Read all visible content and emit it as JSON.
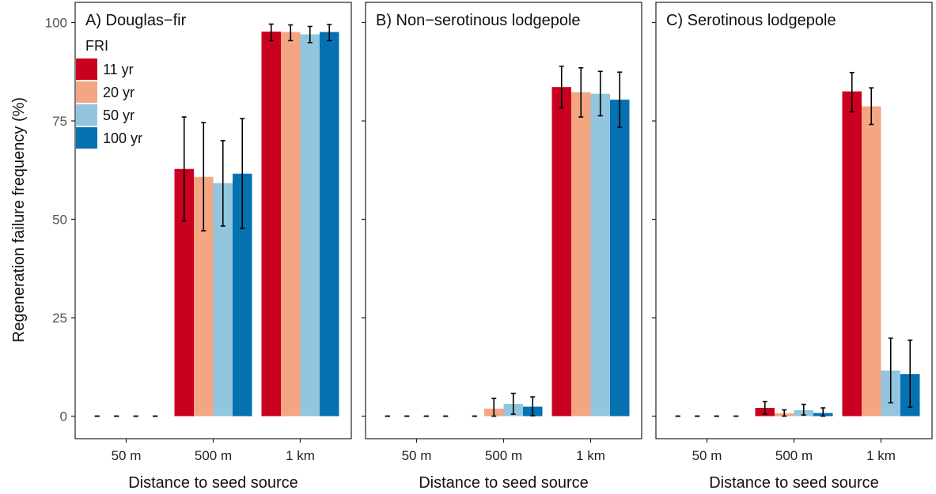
{
  "y_axis_label": "Regeneration failure frequency (%)",
  "legend": {
    "title": "FRI",
    "position": "top-left (inside panel A)",
    "items": [
      {
        "label": "11 yr",
        "color": "#ca0020"
      },
      {
        "label": "20 yr",
        "color": "#f4a582"
      },
      {
        "label": "50 yr",
        "color": "#92c5de"
      },
      {
        "label": "100 yr",
        "color": "#0571b0"
      }
    ]
  },
  "chart_data": [
    {
      "type": "bar",
      "title": "A) Douglas−fir",
      "xlabel": "Distance to seed source",
      "ylabel": "Regeneration failure frequency (%)",
      "categories": [
        "50 m",
        "500 m",
        "1 km"
      ],
      "ylim": [
        0,
        100
      ],
      "yticks": [
        0,
        25,
        50,
        75,
        100
      ],
      "grid": false,
      "series": [
        {
          "name": "11 yr",
          "color": "#ca0020",
          "values": [
            0,
            62.8,
            97.7
          ],
          "err_low": [
            0,
            49.6,
            95.4
          ],
          "err_high": [
            0,
            76.0,
            99.6
          ]
        },
        {
          "name": "20 yr",
          "color": "#f4a582",
          "values": [
            0,
            60.8,
            97.6
          ],
          "err_low": [
            0,
            47.1,
            95.4
          ],
          "err_high": [
            0,
            74.6,
            99.4
          ]
        },
        {
          "name": "50 yr",
          "color": "#92c5de",
          "values": [
            0,
            59.2,
            97.0
          ],
          "err_low": [
            0,
            48.3,
            94.9
          ],
          "err_high": [
            0,
            70.0,
            99.0
          ]
        },
        {
          "name": "100 yr",
          "color": "#0571b0",
          "values": [
            0,
            61.6,
            97.6
          ],
          "err_low": [
            0,
            47.7,
            95.4
          ],
          "err_high": [
            0,
            75.6,
            99.5
          ]
        }
      ]
    },
    {
      "type": "bar",
      "title": "B) Non−serotinous lodgepole",
      "xlabel": "Distance to seed source",
      "ylabel": "Regeneration failure frequency (%)",
      "categories": [
        "50 m",
        "500 m",
        "1 km"
      ],
      "ylim": [
        0,
        100
      ],
      "yticks": [
        0,
        25,
        50,
        75,
        100
      ],
      "grid": false,
      "series": [
        {
          "name": "11 yr",
          "color": "#ca0020",
          "values": [
            0,
            0,
            83.6
          ],
          "err_low": [
            0,
            0,
            78.3
          ],
          "err_high": [
            0,
            0,
            88.9
          ]
        },
        {
          "name": "20 yr",
          "color": "#f4a582",
          "values": [
            0,
            1.9,
            82.3
          ],
          "err_low": [
            0,
            0,
            76.0
          ],
          "err_high": [
            0,
            4.5,
            88.5
          ]
        },
        {
          "name": "50 yr",
          "color": "#92c5de",
          "values": [
            0,
            3.1,
            81.9
          ],
          "err_low": [
            0,
            0.5,
            76.3
          ],
          "err_high": [
            0,
            5.8,
            87.6
          ]
        },
        {
          "name": "100 yr",
          "color": "#0571b0",
          "values": [
            0,
            2.4,
            80.4
          ],
          "err_low": [
            0,
            0.1,
            73.4
          ],
          "err_high": [
            0,
            4.9,
            87.4
          ]
        }
      ]
    },
    {
      "type": "bar",
      "title": "C) Serotinous lodgepole",
      "xlabel": "Distance to seed source",
      "ylabel": "Regeneration failure frequency (%)",
      "categories": [
        "50 m",
        "500 m",
        "1 km"
      ],
      "ylim": [
        0,
        100
      ],
      "yticks": [
        0,
        25,
        50,
        75,
        100
      ],
      "grid": false,
      "series": [
        {
          "name": "11 yr",
          "color": "#ca0020",
          "values": [
            0,
            2.1,
            82.5
          ],
          "err_low": [
            0,
            0.5,
            77.3
          ],
          "err_high": [
            0,
            3.7,
            87.3
          ]
        },
        {
          "name": "20 yr",
          "color": "#f4a582",
          "values": [
            0,
            0.7,
            78.7
          ],
          "err_low": [
            0,
            0,
            74.1
          ],
          "err_high": [
            0,
            1.6,
            83.4
          ]
        },
        {
          "name": "50 yr",
          "color": "#92c5de",
          "values": [
            0,
            1.5,
            11.6
          ],
          "err_low": [
            0,
            0.3,
            3.4
          ],
          "err_high": [
            0,
            3.0,
            19.8
          ]
        },
        {
          "name": "100 yr",
          "color": "#0571b0",
          "values": [
            0,
            0.8,
            10.7
          ],
          "err_low": [
            0,
            0,
            2.3
          ],
          "err_high": [
            0,
            2.1,
            19.3
          ]
        }
      ]
    }
  ]
}
